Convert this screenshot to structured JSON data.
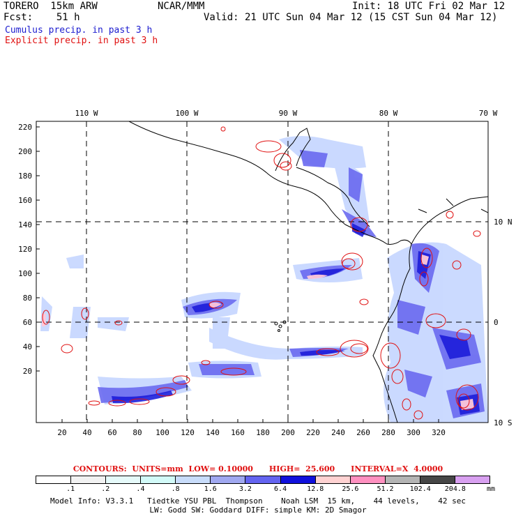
{
  "header": {
    "model": "TORERO  15km ARW",
    "org": "NCAR/MMM",
    "init": "Init: 18 UTC Fri 02 Mar 12",
    "fcst": "Fcst:    51 h",
    "valid": "Valid: 21 UTC Sun 04 Mar 12 (15 CST Sun 04 Mar 12)",
    "field1": "Cumulus precip. in past 3 h",
    "field2": "Explicit precip. in past 3 h"
  },
  "map": {
    "top_labels": [
      "110 W",
      "100 W",
      "90 W",
      "80 W",
      "70 W"
    ],
    "right_labels": [
      "10 N",
      "0",
      "10 S"
    ],
    "y_ticks": [
      "220",
      "200",
      "180",
      "160",
      "140",
      "120",
      "100",
      "80",
      "60",
      "40",
      "20"
    ],
    "x_ticks": [
      "20",
      "40",
      "60",
      "80",
      "100",
      "120",
      "140",
      "160",
      "180",
      "200",
      "220",
      "240",
      "260",
      "280",
      "300",
      "320"
    ],
    "colors": {
      "coast": "#000000",
      "grid": "#000000",
      "contour": "#e01010",
      "shade_light": "#c8d8ff",
      "shade_mid": "#6a6af0",
      "shade_dark": "#1818d8",
      "shade_pink": "#ffc8d8"
    }
  },
  "contours_text": "CONTOURS:  UNITS=mm  LOW= 0.10000      HIGH=  25.600      INTERVAL=X  4.0000",
  "legend": {
    "labels": [
      ".1",
      ".2",
      ".4",
      ".8",
      "1.6",
      "3.2",
      "6.4",
      "12.8",
      "25.6",
      "51.2",
      "102.4",
      "204.8"
    ],
    "unit": "mm",
    "colors": [
      "#ffffff",
      "#f2f2f2",
      "#e6fafa",
      "#d2faf8",
      "#c8dcfa",
      "#a0a8f0",
      "#6464f0",
      "#1010dc",
      "#ffd2d2",
      "#ff90c0",
      "#b4b4b4",
      "#464646",
      "#d8a0f0"
    ]
  },
  "footer": {
    "line1": "Model Info: V3.3.1   Tiedtke YSU PBL  Thompson    Noah LSM  15 km,    44 levels,    42 sec",
    "line2": "LW: Godd SW: Goddard DIFF: simple KM: 2D Smagor"
  }
}
